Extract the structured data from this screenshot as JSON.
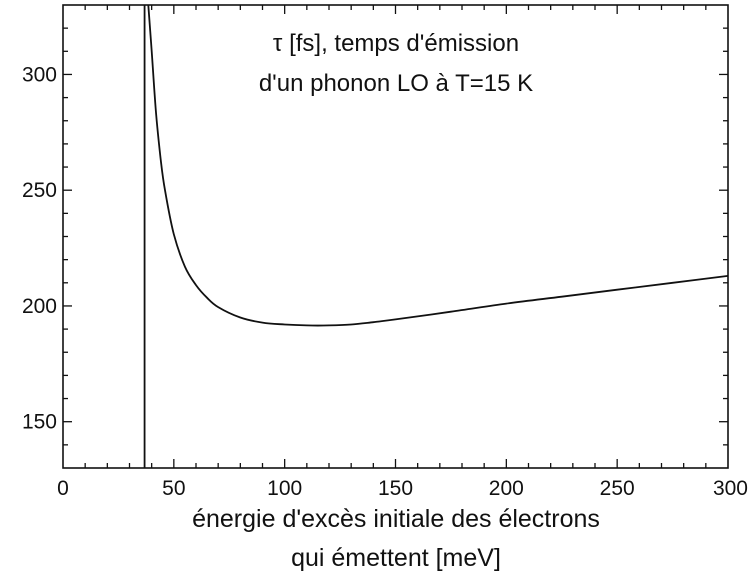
{
  "chart_data": {
    "type": "line",
    "title_lines": [
      "τ [fs], temps d'émission",
      "d'un phonon LO à T=15 K"
    ],
    "xlabel_lines": [
      "énergie d'excès initiale des électrons",
      "qui émettent [meV]"
    ],
    "ylabel": "",
    "xlim": [
      0,
      300
    ],
    "ylim": [
      130,
      330
    ],
    "xticks": [
      0,
      50,
      100,
      150,
      200,
      250,
      300
    ],
    "yticks": [
      150,
      200,
      250,
      300
    ],
    "grid": false,
    "vertical_line_x": 36.8,
    "series": [
      {
        "points": [
          [
            38.5,
            330
          ],
          [
            40,
            310
          ],
          [
            42,
            283
          ],
          [
            44,
            264
          ],
          [
            46,
            250
          ],
          [
            50,
            231
          ],
          [
            55,
            217
          ],
          [
            60,
            209
          ],
          [
            65,
            203.5
          ],
          [
            70,
            199.5
          ],
          [
            80,
            195
          ],
          [
            90,
            192.8
          ],
          [
            100,
            192
          ],
          [
            110,
            191.6
          ],
          [
            120,
            191.6
          ],
          [
            130,
            192
          ],
          [
            140,
            193
          ],
          [
            150,
            194.2
          ],
          [
            175,
            197.5
          ],
          [
            200,
            201
          ],
          [
            225,
            204
          ],
          [
            250,
            207
          ],
          [
            275,
            210
          ],
          [
            300,
            213
          ]
        ]
      }
    ]
  }
}
